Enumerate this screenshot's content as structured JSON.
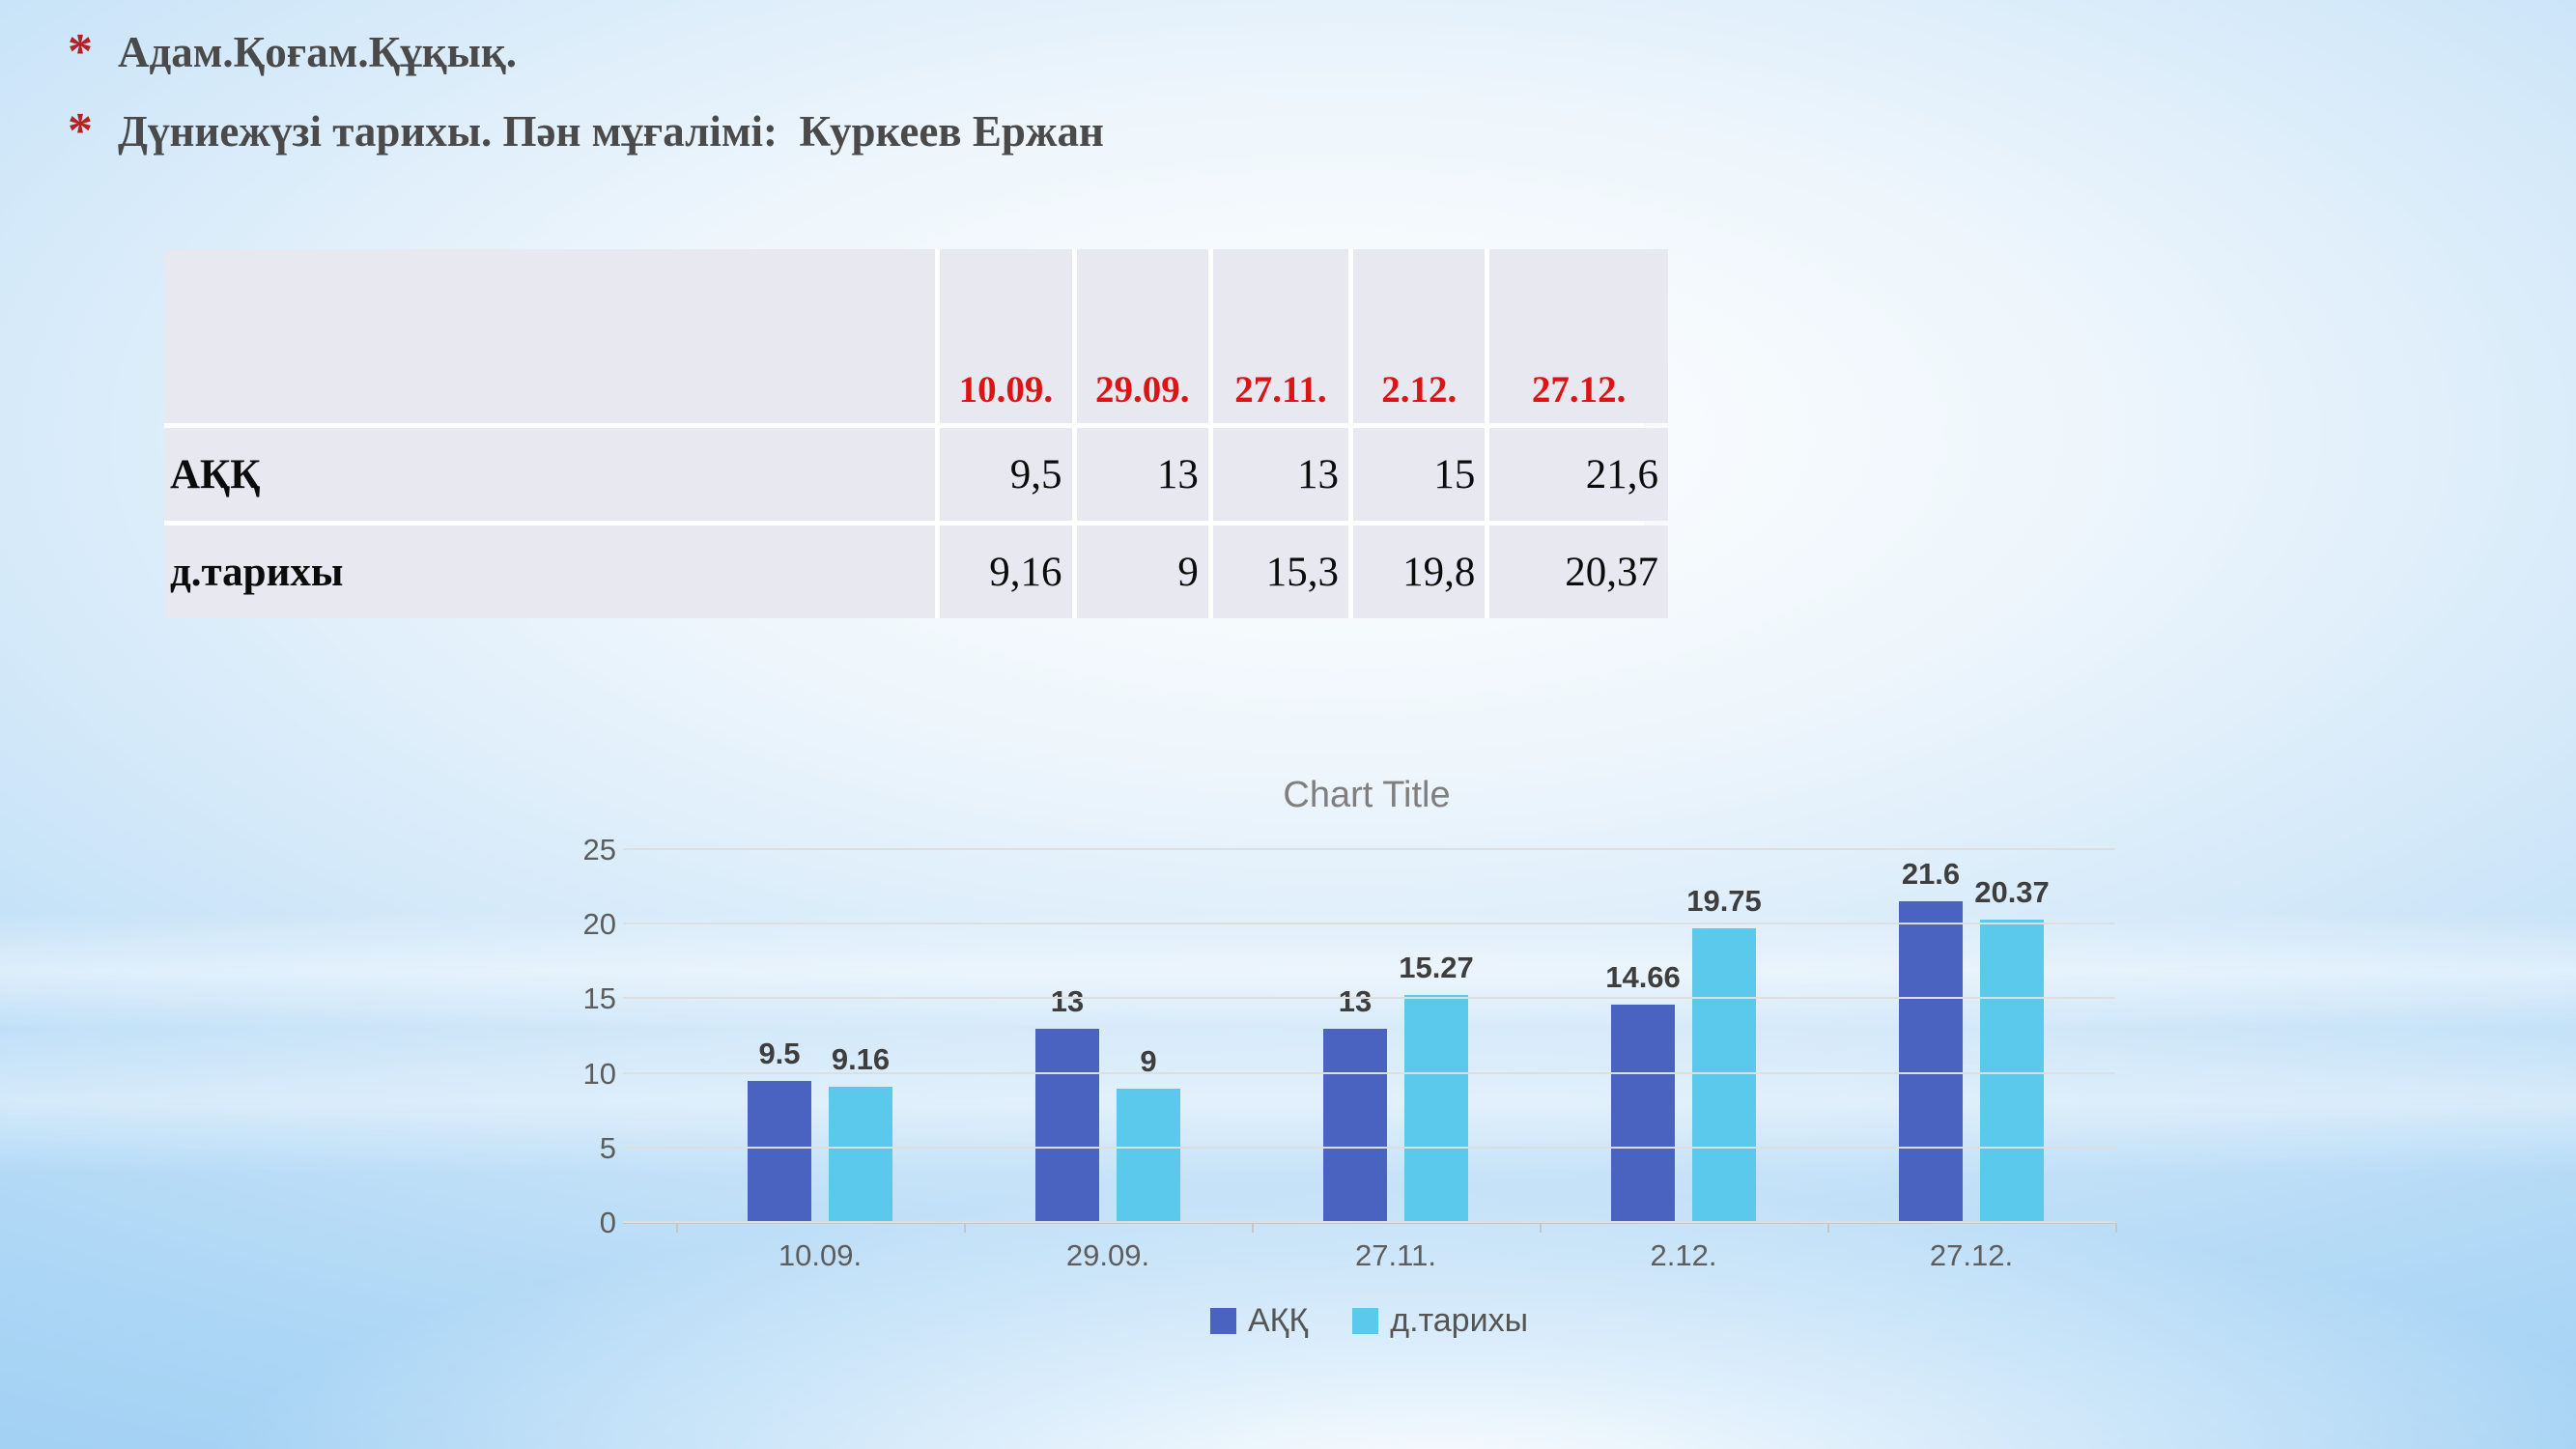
{
  "bullets": {
    "marker": "*",
    "items": [
      "Адам.Қоғам.Құқық.",
      "Дүниежүзі тарихы. Пән мұғалімі:  Куркеев Ержан"
    ]
  },
  "table": {
    "columns": [
      "",
      "10.09.",
      "29.09.",
      "27.11.",
      "2.12.",
      "27.12."
    ],
    "rows": [
      {
        "label": "АҚҚ",
        "values": [
          "9,5",
          "13",
          "13",
          "15",
          "21,6"
        ]
      },
      {
        "label": "д.тарихы",
        "values": [
          "9,16",
          "9",
          "15,3",
          "19,8",
          "20,37"
        ]
      }
    ]
  },
  "chart_data": {
    "type": "bar",
    "title": "Chart Title",
    "categories": [
      "10.09.",
      "29.09.",
      "27.11.",
      "2.12.",
      "27.12."
    ],
    "series": [
      {
        "name": "АҚҚ",
        "color": "#4a63c0",
        "values": [
          9.5,
          13,
          13,
          14.66,
          21.6
        ],
        "labels": [
          "9.5",
          "13",
          "13",
          "14.66",
          "21.6"
        ]
      },
      {
        "name": "д.тарихы",
        "color": "#5bc9ec",
        "values": [
          9.16,
          9,
          15.27,
          19.75,
          20.37
        ],
        "labels": [
          "9.16",
          "9",
          "15.27",
          "19.75",
          "20.37"
        ]
      }
    ],
    "ylim": [
      0,
      25
    ],
    "y_ticks": [
      0,
      5,
      10,
      15,
      20,
      25
    ],
    "grid": true,
    "legend_position": "bottom"
  },
  "colors": {
    "background_edge": "#9bcdf2",
    "bullet_text": "#4a4a4a",
    "bullet_marker": "#b32222",
    "table_cell_bg": "#e8e8f0",
    "table_header_text": "#dd1414",
    "grid_line": "#dcdee0",
    "axis_line": "#c4c6c8",
    "axis_text": "#5d5d5d",
    "data_label_text": "#3e3e3e",
    "chart_title_text": "#7f7f7f"
  }
}
